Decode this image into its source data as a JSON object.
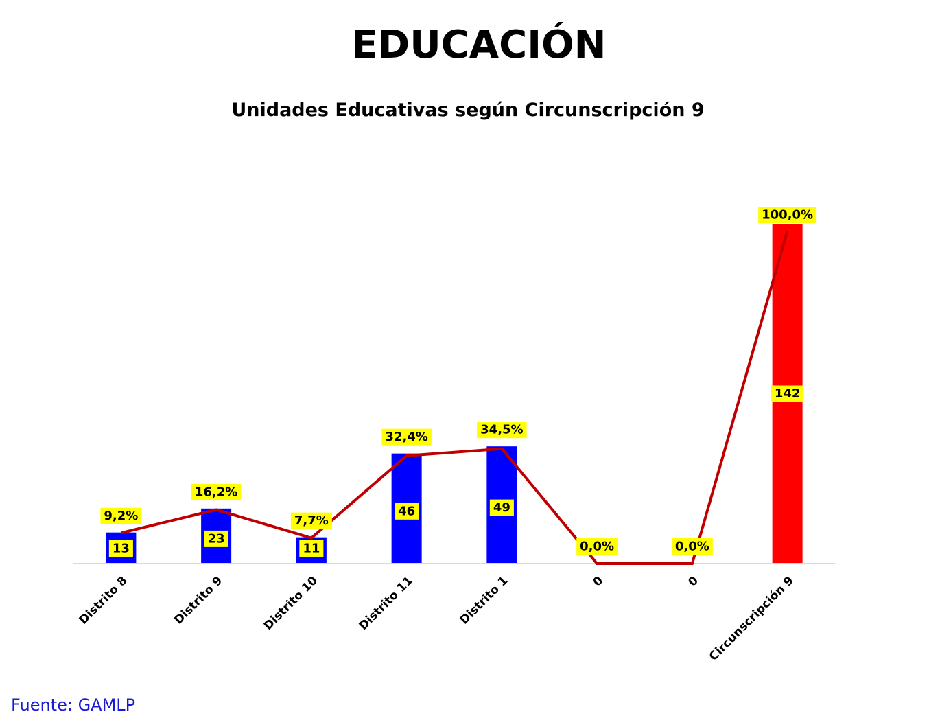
{
  "page": {
    "title": "EDUCACIÓN",
    "source": "Fuente: GAMLP"
  },
  "colors": {
    "bar_default": "#0000ff",
    "bar_highlight": "#ff0000",
    "line": "#c00000",
    "label_bg": "#ffff00",
    "axis": "#d9d9d9",
    "source_text": "#1a1ad6"
  },
  "chart_data": {
    "type": "bar",
    "title": "Unidades Educativas según Circunscripción 9",
    "xlabel": "",
    "ylabel": "",
    "categories": [
      "Distrito 8",
      "Distrito 9",
      "Distrito 10",
      "Distrito 11",
      "Distrito 1",
      "0",
      "0",
      "Circunscripción 9"
    ],
    "series": [
      {
        "type": "bar",
        "values": [
          13,
          23,
          11,
          46,
          49,
          0,
          0,
          142
        ],
        "labels": [
          "13",
          "23",
          "11",
          "46",
          "49",
          "",
          "",
          "142"
        ],
        "highlight_index": 7
      },
      {
        "type": "line",
        "values": [
          9.2,
          16.2,
          7.7,
          32.4,
          34.5,
          0.0,
          0.0,
          100.0
        ],
        "labels": [
          "9,2%",
          "16,2%",
          "7,7%",
          "32,4%",
          "34,5%",
          "0,0%",
          "0,0%",
          "100,0%"
        ]
      }
    ],
    "grid": false,
    "legend": "none"
  }
}
